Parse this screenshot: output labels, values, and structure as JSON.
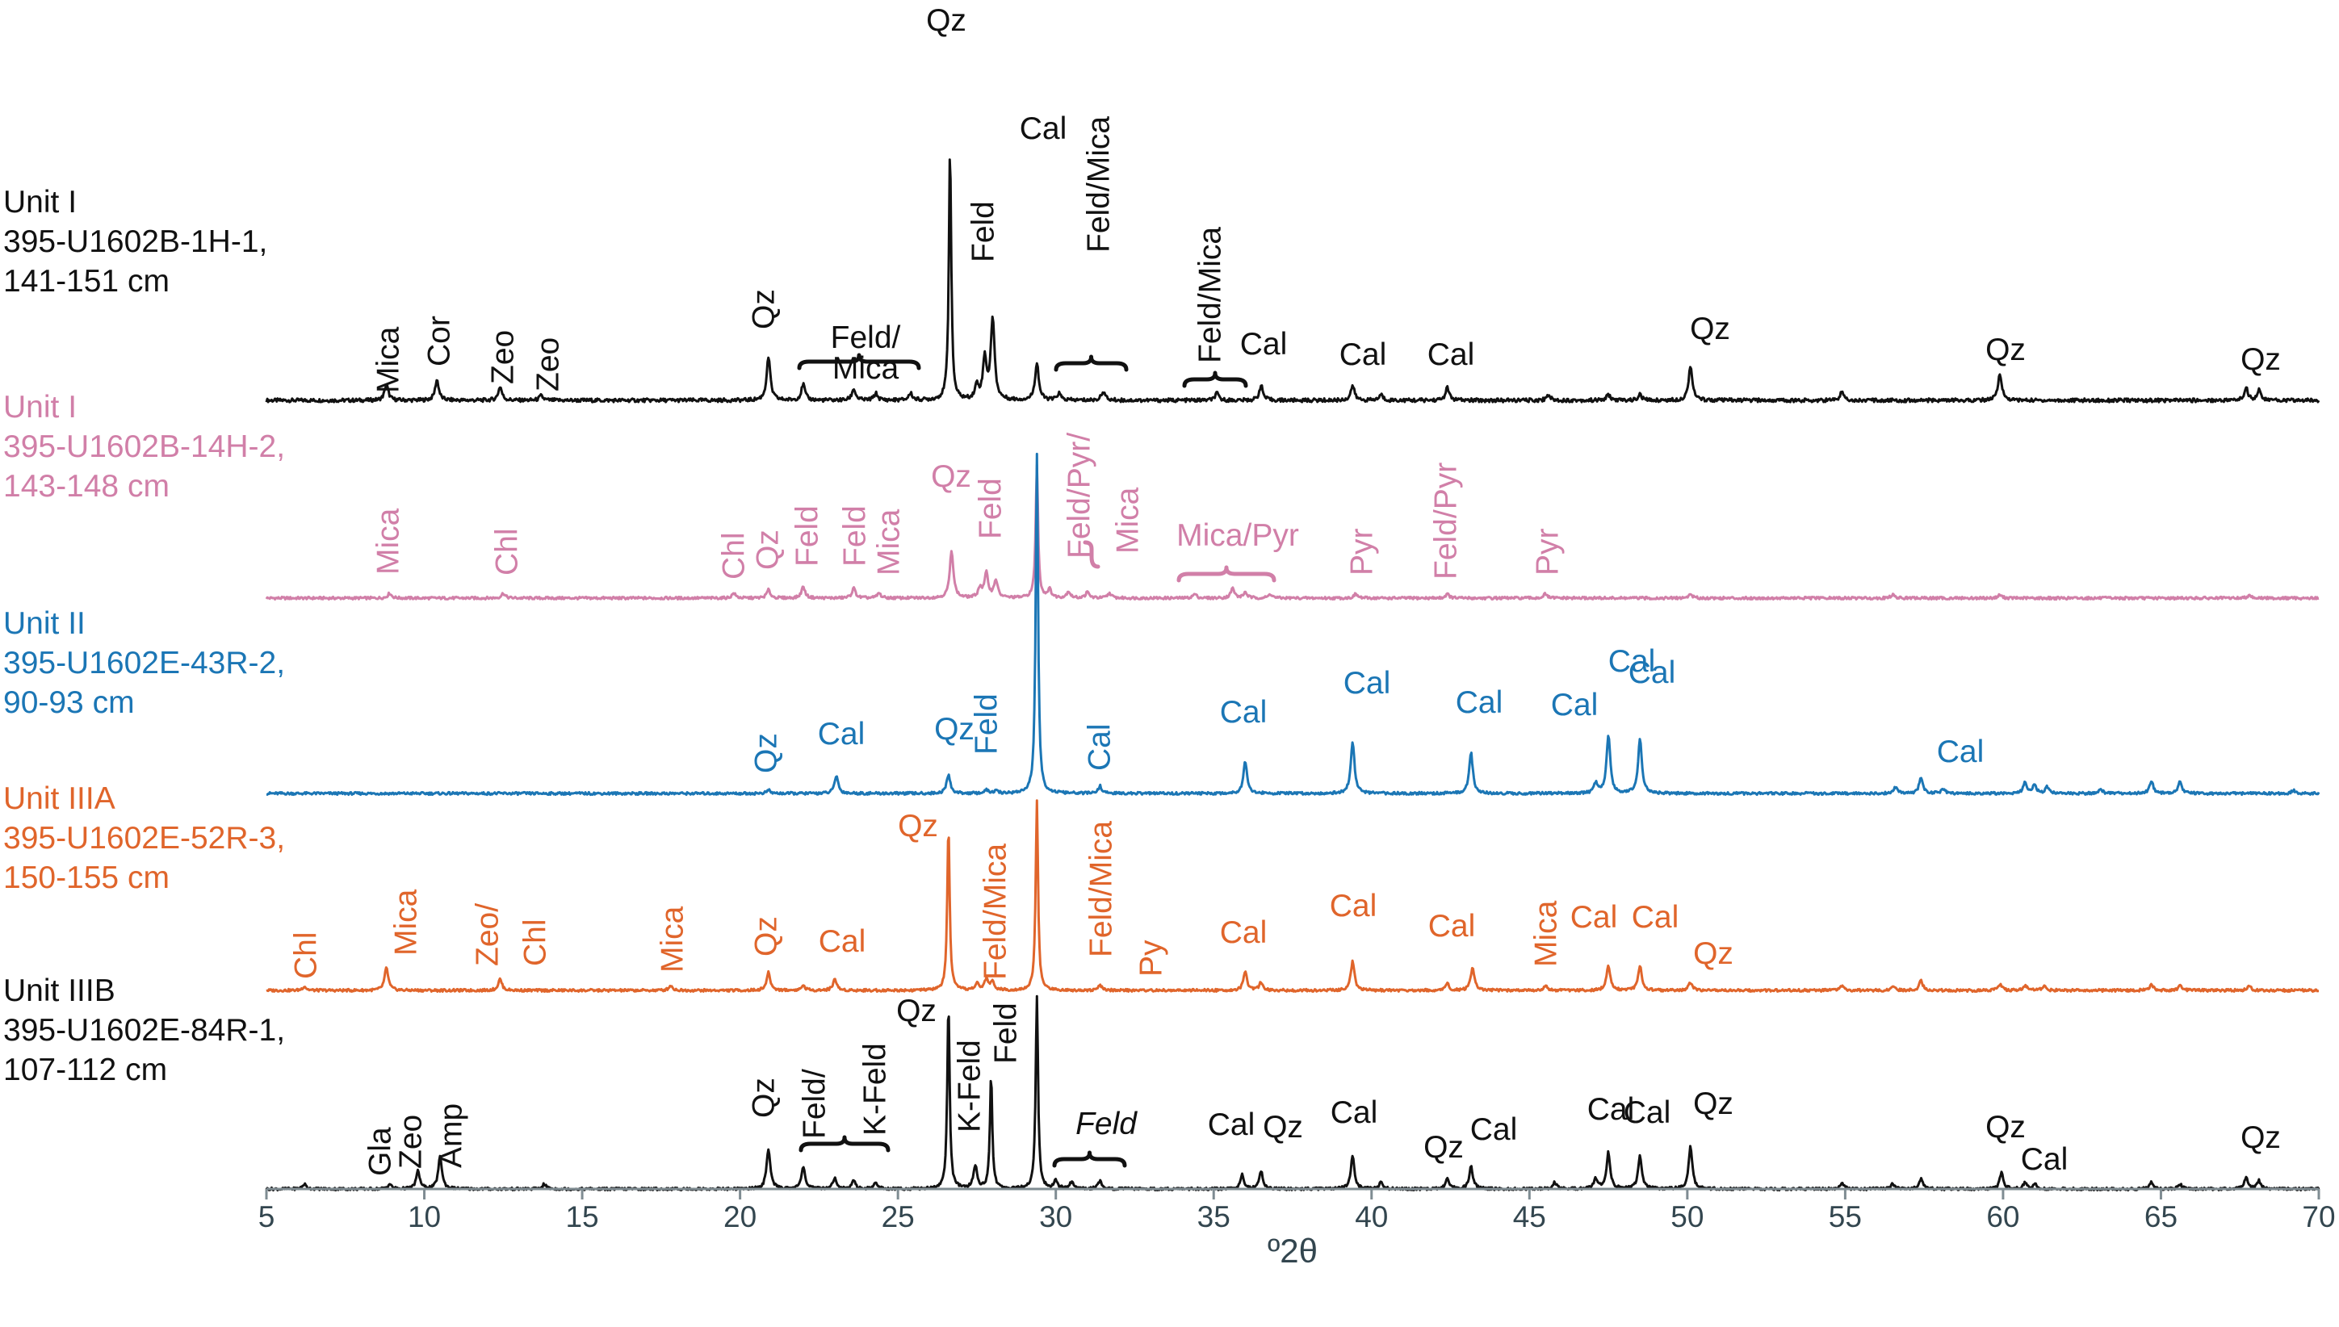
{
  "chart_data": {
    "type": "line",
    "xlabel": "º2θ",
    "ylabel": "",
    "xlim": [
      5,
      70
    ],
    "x_ticks": [
      5,
      10,
      15,
      20,
      25,
      30,
      35,
      40,
      45,
      50,
      55,
      60,
      65,
      70
    ],
    "grid": false,
    "series": [
      {
        "name": "Unit I 395-U1602B-1H-1, 141-151 cm",
        "label_lines": [
          "Unit I",
          "395-U1602B-1H-1,",
          "141-151 cm"
        ],
        "color": "#111111",
        "baseline": 0,
        "peaks": [
          [
            8.8,
            14
          ],
          [
            10.4,
            18
          ],
          [
            12.4,
            12
          ],
          [
            13.7,
            4
          ],
          [
            20.9,
            38
          ],
          [
            22.0,
            14
          ],
          [
            23.6,
            10
          ],
          [
            24.3,
            6
          ],
          [
            25.4,
            6
          ],
          [
            26.65,
            222
          ],
          [
            27.5,
            12
          ],
          [
            27.75,
            36
          ],
          [
            28.0,
            72
          ],
          [
            29.4,
            33
          ],
          [
            30.1,
            6
          ],
          [
            31.5,
            8
          ],
          [
            35.1,
            6
          ],
          [
            36.5,
            13
          ],
          [
            39.4,
            13
          ],
          [
            40.3,
            5
          ],
          [
            42.4,
            11
          ],
          [
            45.6,
            5
          ],
          [
            47.5,
            5
          ],
          [
            48.5,
            5
          ],
          [
            50.1,
            31
          ],
          [
            54.9,
            8
          ],
          [
            59.9,
            24
          ],
          [
            67.7,
            11
          ],
          [
            68.1,
            9
          ]
        ],
        "labels": [
          {
            "text": "Mica",
            "x": 8.9,
            "rotated": true
          },
          {
            "text": "Cor",
            "x": 10.4,
            "rotated": true
          },
          {
            "text": "Zeo",
            "x": 12.5,
            "rotated": true
          },
          {
            "text": "Zeo",
            "x": 13.8,
            "rotated": true
          },
          {
            "text": "Qz",
            "x": 20.8,
            "rotated": true
          },
          {
            "text": "Feld/",
            "x": 24.5,
            "rotated": false
          },
          {
            "text": "Mica",
            "x": 24.5,
            "rotated": false
          },
          {
            "text": "Qz",
            "x": 26.6,
            "rotated": false
          },
          {
            "text": "Feld",
            "x": 28.2,
            "rotated": true
          },
          {
            "text": "Cal",
            "x": 29.3,
            "rotated": false
          },
          {
            "text": "Feld/Mica",
            "x": 31.5,
            "rotated": true
          },
          {
            "text": "Feld/Mica",
            "x": 35.3,
            "rotated": true
          },
          {
            "text": "Cal",
            "x": 36.5,
            "rotated": false
          },
          {
            "text": "Cal",
            "x": 39.4,
            "rotated": false
          },
          {
            "text": "Cal",
            "x": 42.2,
            "rotated": false
          },
          {
            "text": "Qz",
            "x": 50.6,
            "rotated": false
          },
          {
            "text": "Qz",
            "x": 60.2,
            "rotated": false
          },
          {
            "text": "Qz",
            "x": 67.9,
            "rotated": false
          }
        ]
      },
      {
        "name": "Unit I 395-U1602B-14H-2, 143-148 cm",
        "label_lines": [
          "Unit I",
          "395-U1602B-14H-2,",
          "143-148 cm"
        ],
        "color": "#d17fa8",
        "baseline": 0,
        "peaks": [
          [
            8.9,
            6
          ],
          [
            12.5,
            6
          ],
          [
            19.8,
            6
          ],
          [
            20.9,
            10
          ],
          [
            22.0,
            14
          ],
          [
            23.6,
            12
          ],
          [
            24.4,
            6
          ],
          [
            26.7,
            58
          ],
          [
            27.6,
            12
          ],
          [
            27.8,
            30
          ],
          [
            28.1,
            22
          ],
          [
            29.4,
            165
          ],
          [
            29.8,
            10
          ],
          [
            30.4,
            8
          ],
          [
            31.0,
            7
          ],
          [
            31.7,
            6
          ],
          [
            34.4,
            5
          ],
          [
            35.6,
            12
          ],
          [
            36.0,
            7
          ],
          [
            36.8,
            5
          ],
          [
            39.5,
            5
          ],
          [
            42.4,
            5
          ],
          [
            45.5,
            5
          ],
          [
            50.1,
            5
          ],
          [
            56.5,
            4
          ],
          [
            59.9,
            4
          ],
          [
            67.8,
            4
          ]
        ],
        "labels": [
          {
            "text": "Mica",
            "x": 8.9,
            "rotated": true
          },
          {
            "text": "Chl",
            "x": 12.6,
            "rotated": true
          },
          {
            "text": "Chl",
            "x": 20.0,
            "rotated": true
          },
          {
            "text": "Qz",
            "x": 20.9,
            "rotated": true
          },
          {
            "text": "Feld",
            "x": 22.1,
            "rotated": true
          },
          {
            "text": "Feld",
            "x": 23.7,
            "rotated": true
          },
          {
            "text": "Mica",
            "x": 24.6,
            "rotated": true
          },
          {
            "text": "Qz",
            "x": 27.1,
            "rotated": false
          },
          {
            "text": "Feld",
            "x": 27.9,
            "rotated": true
          },
          {
            "text": "Feld/Pyr/",
            "x": 30.8,
            "rotated": true
          },
          {
            "text": "Mica",
            "x": 31.7,
            "rotated": true
          },
          {
            "text": "Mica/Pyr",
            "x": 35.5,
            "rotated": false
          },
          {
            "text": "Pyr",
            "x": 39.3,
            "rotated": true
          },
          {
            "text": "Feld/Pyr",
            "x": 42.3,
            "rotated": true
          },
          {
            "text": "Pyr",
            "x": 45.5,
            "rotated": true
          }
        ]
      },
      {
        "name": "Unit II 395-U1602E-43R-2, 90-93 cm",
        "label_lines": [
          "Unit II",
          "395-U1602E-43R-2,",
          "90-93 cm"
        ],
        "color": "#1b76b5",
        "baseline": 0,
        "peaks": [
          [
            20.9,
            4
          ],
          [
            23.05,
            22
          ],
          [
            26.6,
            23
          ],
          [
            27.8,
            4
          ],
          [
            28.1,
            3
          ],
          [
            29.4,
            420
          ],
          [
            31.4,
            9
          ],
          [
            36.0,
            40
          ],
          [
            39.4,
            64
          ],
          [
            43.15,
            50
          ],
          [
            47.1,
            12
          ],
          [
            47.5,
            72
          ],
          [
            48.5,
            68
          ],
          [
            56.6,
            8
          ],
          [
            57.4,
            20
          ],
          [
            58.1,
            6
          ],
          [
            60.7,
            14
          ],
          [
            61.0,
            10
          ],
          [
            61.4,
            8
          ],
          [
            63.1,
            5
          ],
          [
            64.7,
            15
          ],
          [
            65.6,
            14
          ],
          [
            69.2,
            4
          ]
        ],
        "labels": [
          {
            "text": "Qz",
            "x": 20.8,
            "rotated": true
          },
          {
            "text": "Cal",
            "x": 23.2,
            "rotated": false
          },
          {
            "text": "Qz",
            "x": 26.4,
            "rotated": false
          },
          {
            "text": "Feld",
            "x": 27.8,
            "rotated": true
          },
          {
            "text": "Cal",
            "x": 31.4,
            "rotated": true
          },
          {
            "text": "Cal",
            "x": 36.0,
            "rotated": false
          },
          {
            "text": "Cal",
            "x": 39.4,
            "rotated": false
          },
          {
            "text": "Cal",
            "x": 43.2,
            "rotated": false
          },
          {
            "text": "Cal",
            "x": 47.1,
            "rotated": false
          },
          {
            "text": "Cal",
            "x": 47.8,
            "rotated": false
          },
          {
            "text": "Cal",
            "x": 48.7,
            "rotated": false
          },
          {
            "text": "Cal",
            "x": 61.0,
            "rotated": false
          }
        ]
      },
      {
        "name": "Unit IIIA 395-U1602E-52R-3, 150-155 cm",
        "label_lines": [
          "Unit IIIA",
          "395-U1602E-52R-3,",
          "150-155 cm"
        ],
        "color": "#e0652b",
        "baseline": 0,
        "peaks": [
          [
            6.2,
            5
          ],
          [
            8.8,
            28
          ],
          [
            12.4,
            14
          ],
          [
            17.8,
            6
          ],
          [
            20.9,
            22
          ],
          [
            22.0,
            6
          ],
          [
            23.0,
            14
          ],
          [
            26.6,
            205
          ],
          [
            27.5,
            8
          ],
          [
            27.8,
            14
          ],
          [
            28.0,
            10
          ],
          [
            29.4,
            235
          ],
          [
            31.4,
            6
          ],
          [
            36.0,
            22
          ],
          [
            36.5,
            10
          ],
          [
            39.4,
            36
          ],
          [
            42.4,
            8
          ],
          [
            43.2,
            28
          ],
          [
            45.5,
            6
          ],
          [
            47.5,
            30
          ],
          [
            48.5,
            30
          ],
          [
            50.1,
            10
          ],
          [
            54.9,
            5
          ],
          [
            56.5,
            5
          ],
          [
            57.4,
            12
          ],
          [
            59.9,
            8
          ],
          [
            60.7,
            6
          ],
          [
            61.3,
            5
          ],
          [
            64.7,
            7
          ],
          [
            65.6,
            6
          ],
          [
            67.8,
            5
          ]
        ],
        "labels": [
          {
            "text": "Chl",
            "x": 6.2,
            "rotated": true
          },
          {
            "text": "Mica",
            "x": 9.3,
            "rotated": true
          },
          {
            "text": "Zeo/",
            "x": 11.8,
            "rotated": true
          },
          {
            "text": "Chl",
            "x": 13.0,
            "rotated": true
          },
          {
            "text": "Mica",
            "x": 17.8,
            "rotated": true
          },
          {
            "text": "Qz",
            "x": 20.8,
            "rotated": true
          },
          {
            "text": "Cal",
            "x": 23.2,
            "rotated": false
          },
          {
            "text": "Qz",
            "x": 25.6,
            "rotated": false
          },
          {
            "text": "Feld/Mica",
            "x": 28.0,
            "rotated": true
          },
          {
            "text": "Feld/Mica",
            "x": 31.5,
            "rotated": true
          },
          {
            "text": "Py",
            "x": 33.2,
            "rotated": true
          },
          {
            "text": "Cal",
            "x": 36.0,
            "rotated": false
          },
          {
            "text": "Cal",
            "x": 39.4,
            "rotated": false
          },
          {
            "text": "Cal",
            "x": 43.2,
            "rotated": false
          },
          {
            "text": "Mica",
            "x": 45.4,
            "rotated": true
          },
          {
            "text": "Cal",
            "x": 47.3,
            "rotated": false
          },
          {
            "text": "Cal",
            "x": 48.5,
            "rotated": false
          },
          {
            "text": "Qz",
            "x": 50.6,
            "rotated": false
          }
        ]
      },
      {
        "name": "Unit IIIB 395-U1602E-84R-1, 107-112 cm",
        "label_lines": [
          "Unit IIIB",
          "395-U1602E-84R-1,",
          "107-112 cm"
        ],
        "color": "#111111",
        "baseline": 0,
        "peaks": [
          [
            6.2,
            6
          ],
          [
            8.9,
            6
          ],
          [
            9.8,
            22
          ],
          [
            10.5,
            40
          ],
          [
            13.8,
            6
          ],
          [
            20.9,
            50
          ],
          [
            22.0,
            28
          ],
          [
            23.0,
            14
          ],
          [
            23.6,
            10
          ],
          [
            24.3,
            8
          ],
          [
            26.6,
            230
          ],
          [
            27.45,
            28
          ],
          [
            27.95,
            140
          ],
          [
            29.4,
            240
          ],
          [
            30.0,
            10
          ],
          [
            30.5,
            8
          ],
          [
            31.4,
            10
          ],
          [
            35.9,
            18
          ],
          [
            36.5,
            22
          ],
          [
            39.4,
            40
          ],
          [
            40.3,
            8
          ],
          [
            42.4,
            14
          ],
          [
            43.15,
            28
          ],
          [
            45.8,
            8
          ],
          [
            47.1,
            12
          ],
          [
            47.5,
            45
          ],
          [
            48.5,
            40
          ],
          [
            50.1,
            52
          ],
          [
            54.9,
            8
          ],
          [
            56.5,
            6
          ],
          [
            57.4,
            12
          ],
          [
            59.95,
            20
          ],
          [
            60.7,
            8
          ],
          [
            61.0,
            6
          ],
          [
            64.7,
            8
          ],
          [
            65.6,
            6
          ],
          [
            67.7,
            14
          ],
          [
            68.1,
            10
          ]
        ],
        "labels": [
          {
            "text": "Gla",
            "x": 8.8,
            "rotated": true
          },
          {
            "text": "Zeo",
            "x": 9.8,
            "rotated": true
          },
          {
            "text": "Amp",
            "x": 10.6,
            "rotated": true
          },
          {
            "text": "Qz",
            "x": 20.8,
            "rotated": true
          },
          {
            "text": "Feld/",
            "x": 23.2,
            "rotated": true
          },
          {
            "text": "K-Feld",
            "x": 24.3,
            "rotated": true
          },
          {
            "text": "Qz",
            "x": 26.0,
            "rotated": false
          },
          {
            "text": "K-Feld",
            "x": 27.1,
            "rotated": true
          },
          {
            "text": "Feld",
            "x": 28.3,
            "rotated": true
          },
          {
            "text": "Feld",
            "x": 31.7,
            "rotated": false
          },
          {
            "text": "Cal",
            "x": 35.9,
            "rotated": false
          },
          {
            "text": "Qz",
            "x": 37.0,
            "rotated": false
          },
          {
            "text": "Cal",
            "x": 39.4,
            "rotated": false
          },
          {
            "text": "Qz",
            "x": 41.9,
            "rotated": false
          },
          {
            "text": "Cal",
            "x": 43.7,
            "rotated": false
          },
          {
            "text": "Cal",
            "x": 47.5,
            "rotated": false
          },
          {
            "text": "Cal",
            "x": 48.6,
            "rotated": false
          },
          {
            "text": "Qz",
            "x": 50.7,
            "rotated": false
          },
          {
            "text": "Qz",
            "x": 60.2,
            "rotated": false
          },
          {
            "text": "Cal",
            "x": 61.2,
            "rotated": false
          },
          {
            "text": "Qz",
            "x": 67.9,
            "rotated": false
          }
        ]
      }
    ]
  }
}
